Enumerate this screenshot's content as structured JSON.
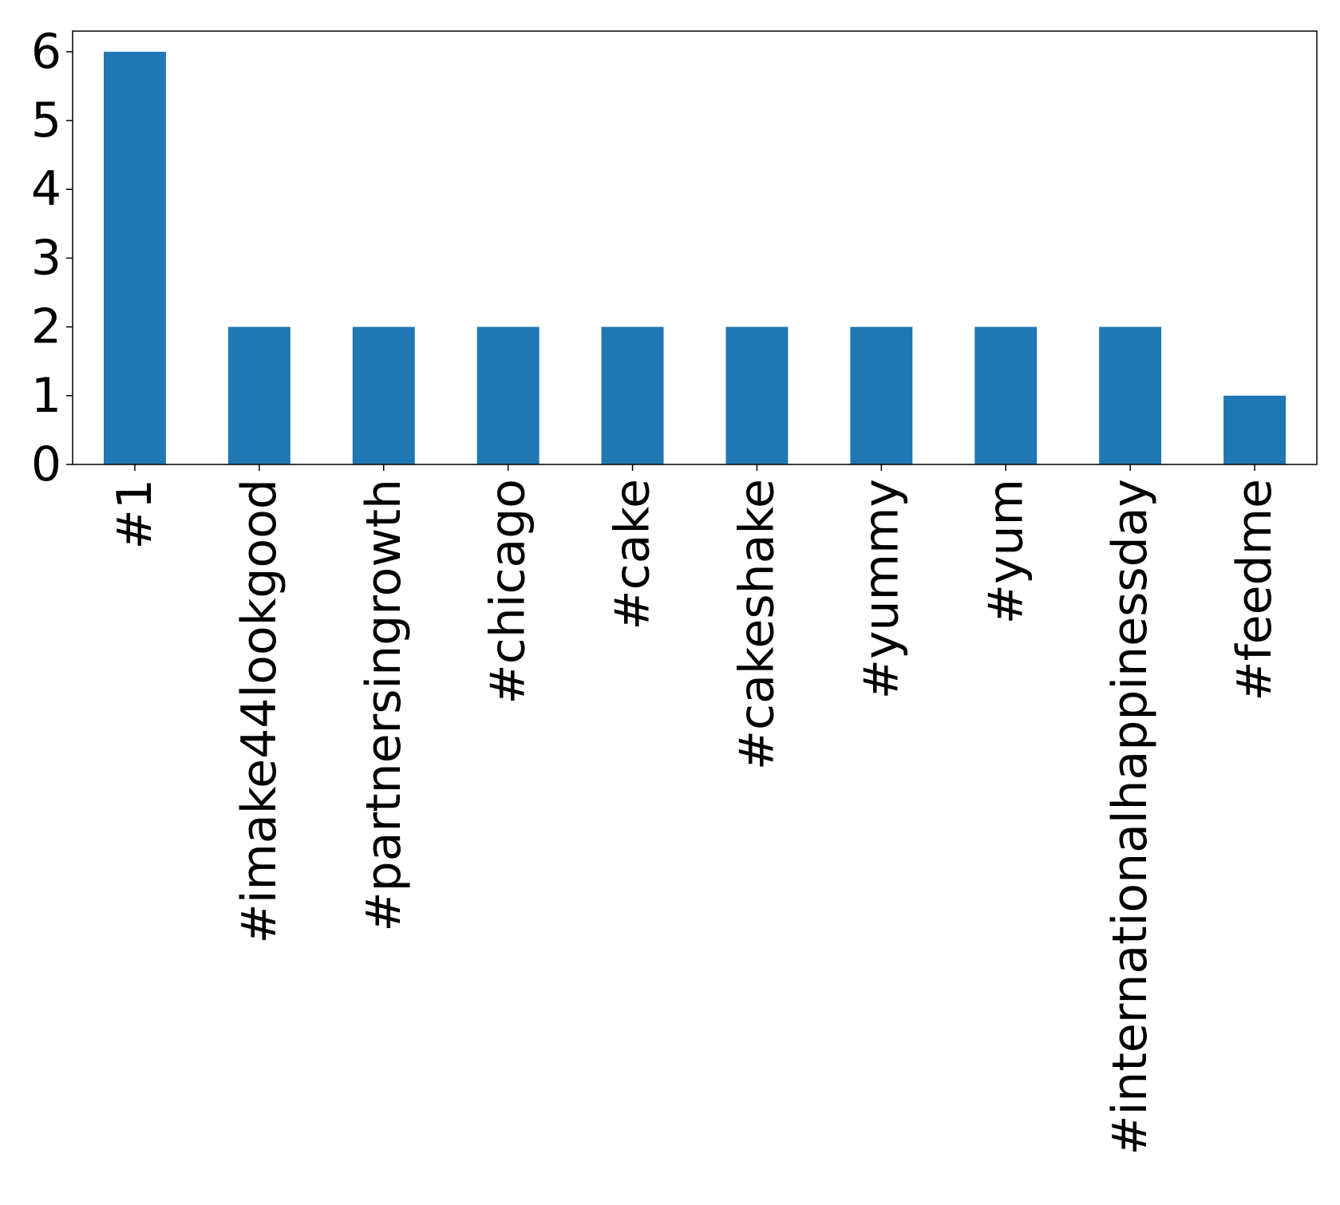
{
  "chart_data": {
    "type": "bar",
    "title": "",
    "xlabel": "",
    "ylabel": "",
    "categories": [
      "#1",
      "#imake44lookgood",
      "#partnersingrowth",
      "#chicago",
      "#cake",
      "#cakeshake",
      "#yummy",
      "#yum",
      "#internationalhappinessday",
      "#feedme"
    ],
    "values": [
      6,
      2,
      2,
      2,
      2,
      2,
      2,
      2,
      2,
      1
    ],
    "ylim": [
      0,
      6.3
    ],
    "yticks": [
      0,
      1,
      2,
      3,
      4,
      5,
      6
    ],
    "grid": false,
    "legend": "none",
    "bar_color": "#1f77b4",
    "x_tick_rotation": "vertical"
  }
}
